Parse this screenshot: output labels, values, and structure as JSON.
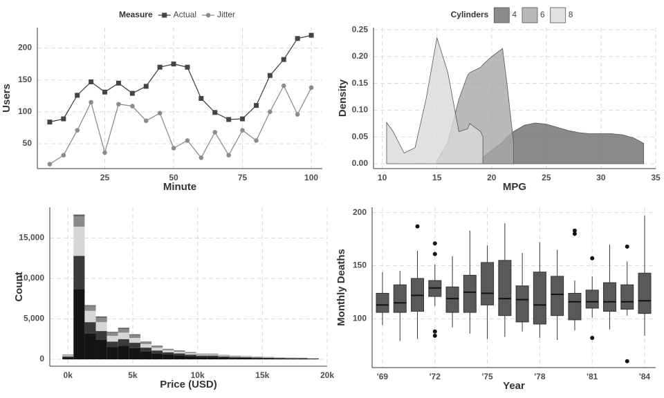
{
  "chart_data": [
    {
      "type": "line",
      "xlabel": "Minute",
      "ylabel": "Users",
      "legend_title": "Measure",
      "legend": "top",
      "x": [
        5,
        10,
        15,
        20,
        25,
        30,
        35,
        40,
        45,
        50,
        55,
        60,
        65,
        70,
        75,
        80,
        85,
        90,
        95,
        100
      ],
      "series": [
        {
          "name": "Actual",
          "color": "#444444",
          "marker": "square",
          "values": [
            84,
            89,
            126,
            147,
            131,
            145,
            129,
            140,
            170,
            175,
            170,
            121,
            99,
            88,
            89,
            110,
            157,
            182,
            215,
            220
          ]
        },
        {
          "name": "Jitter",
          "color": "#8c8c8c",
          "marker": "circle",
          "values": [
            18,
            32,
            71,
            115,
            36,
            112,
            109,
            86,
            98,
            43,
            55,
            28,
            68,
            32,
            71,
            55,
            100,
            141,
            96,
            138
          ]
        }
      ],
      "xlim": [
        0.5,
        104
      ],
      "xticks": [
        25,
        50,
        75,
        100
      ],
      "ylim": [
        11,
        232
      ],
      "yticks": [
        50,
        100,
        150,
        200
      ],
      "grid": true
    },
    {
      "type": "area",
      "xlabel": "MPG",
      "ylabel": "Density",
      "legend_title": "Cylinders",
      "legend": "top",
      "x": [
        10.4,
        11,
        12,
        13,
        14,
        15,
        16,
        17,
        17.8,
        18,
        19,
        19.2,
        20,
        21,
        21.4,
        22,
        23,
        24,
        25,
        26,
        27,
        28,
        29,
        30,
        31,
        32,
        33,
        33.9
      ],
      "series": [
        {
          "name": "4",
          "color": "#6e6e6e",
          "values": [
            null,
            null,
            null,
            null,
            null,
            null,
            null,
            null,
            null,
            null,
            0.01,
            0.012,
            0.025,
            0.04,
            0.05,
            0.06,
            0.072,
            0.076,
            0.074,
            0.068,
            0.062,
            0.058,
            0.056,
            0.056,
            0.056,
            0.054,
            0.048,
            0.038
          ]
        },
        {
          "name": "6",
          "color": "#a8a8a8",
          "values": [
            null,
            null,
            null,
            null,
            null,
            0.005,
            0.04,
            0.12,
            0.165,
            0.17,
            0.18,
            0.185,
            0.2,
            0.215,
            0.15,
            0.04,
            null,
            null,
            null,
            null,
            null,
            null,
            null,
            null,
            null,
            null,
            null,
            null
          ]
        },
        {
          "name": "8",
          "color": "#d9d9d9",
          "values": [
            0.077,
            0.06,
            0.02,
            0.03,
            0.12,
            0.235,
            0.17,
            0.06,
            0.065,
            0.075,
            0.06,
            0.05,
            null,
            null,
            null,
            null,
            null,
            null,
            null,
            null,
            null,
            null,
            null,
            null,
            null,
            null,
            null,
            null
          ]
        }
      ],
      "xlim": [
        9.2,
        35
      ],
      "xticks": [
        10,
        15,
        20,
        25,
        30,
        35
      ],
      "ylim": [
        -0.009,
        0.254
      ],
      "yticks": [
        {
          "value": 0,
          "label": "0.00"
        },
        0.05,
        {
          "value": 0.1,
          "label": "0.10"
        },
        0.15,
        {
          "value": 0.2,
          "label": "0.20"
        },
        0.25
      ],
      "grid": true
    },
    {
      "type": "histogram",
      "xlabel": "Price (USD)",
      "ylabel": "Count",
      "bins": [
        -430,
        430,
        1290,
        2150,
        3010,
        3870,
        4730,
        5590,
        6450,
        7310,
        8170,
        9030,
        9890,
        10750,
        11610,
        12470,
        13330,
        14190,
        15050,
        15910,
        16770,
        17630,
        18490,
        19350
      ],
      "series": [
        {
          "color": "#141414",
          "values": [
            250,
            8700,
            3200,
            2400,
            1500,
            1700,
            1400,
            1000,
            750,
            600,
            500,
            400,
            320,
            320,
            250,
            200,
            180,
            160,
            140,
            115,
            105,
            90,
            70
          ]
        },
        {
          "color": "#3a3a3a",
          "values": [
            120,
            4100,
            1400,
            1100,
            700,
            800,
            650,
            450,
            350,
            270,
            230,
            190,
            150,
            150,
            120,
            100,
            90,
            75,
            65,
            55,
            50,
            45,
            35
          ]
        },
        {
          "color": "#d6d6d6",
          "values": [
            120,
            3600,
            1400,
            1100,
            700,
            800,
            600,
            450,
            350,
            250,
            200,
            170,
            130,
            130,
            100,
            80,
            70,
            60,
            50,
            40,
            40,
            35,
            25
          ]
        },
        {
          "color": "#8a8a8a",
          "values": [
            90,
            1300,
            600,
            550,
            400,
            450,
            350,
            250,
            200,
            150,
            140,
            110,
            80,
            80,
            60,
            55,
            45,
            40,
            35,
            30,
            25,
            22,
            15
          ]
        },
        {
          "color": "#5a5a5a",
          "values": [
            20,
            200,
            100,
            150,
            100,
            150,
            100,
            50,
            50,
            30,
            30,
            30,
            20,
            20,
            20,
            15,
            15,
            15,
            10,
            10,
            10,
            8,
            5
          ]
        }
      ],
      "xlim": [
        -1400,
        20000
      ],
      "xticks": [
        {
          "value": 0,
          "label": "0k"
        },
        {
          "value": 5000,
          "label": "5k"
        },
        {
          "value": 10000,
          "label": "10k"
        },
        {
          "value": 15000,
          "label": "15k"
        },
        {
          "value": 20000,
          "label": "20k"
        }
      ],
      "ylim": [
        -850,
        18800
      ],
      "yticks": [
        0,
        {
          "value": 5000,
          "label": "5,000"
        },
        {
          "value": 10000,
          "label": "10,000"
        },
        {
          "value": 15000,
          "label": "15,000"
        }
      ],
      "grid": true
    },
    {
      "type": "box",
      "xlabel": "Year",
      "ylabel": "Monthly Deaths",
      "color": "#595959",
      "categories": [
        "'69",
        null,
        null,
        "'72",
        null,
        null,
        "'75",
        null,
        null,
        "'78",
        null,
        null,
        "'81",
        null,
        null,
        "'84"
      ],
      "low": [
        94,
        79,
        81,
        112,
        92,
        86,
        81,
        83,
        88,
        82,
        80,
        89,
        101,
        90,
        103,
        84
      ],
      "q1": [
        106,
        106,
        107,
        121,
        106,
        106,
        113,
        103,
        97,
        95,
        103,
        99,
        110,
        107,
        109,
        105
      ],
      "median": [
        113,
        115,
        122,
        129,
        119,
        125,
        124,
        119,
        118,
        113,
        123,
        116,
        116,
        116,
        116,
        117
      ],
      "q3": [
        124,
        132,
        138,
        136,
        130,
        141,
        153,
        155,
        131,
        144,
        140,
        124,
        127,
        134,
        132,
        143
      ],
      "high": [
        144,
        145,
        164,
        151,
        159,
        183,
        169,
        190,
        162,
        172,
        165,
        136,
        140,
        170,
        154,
        197
      ],
      "outliers": [
        [],
        [],
        [
          187
        ],
        [
          171,
          161,
          88,
          84
        ],
        [],
        [],
        [],
        [],
        [],
        [],
        [],
        [
          183,
          180
        ],
        [
          157,
          82
        ],
        [],
        [
          168,
          60
        ],
        []
      ],
      "ylim": [
        54,
        205
      ],
      "yticks": [
        100,
        150,
        200
      ],
      "grid": true
    }
  ]
}
